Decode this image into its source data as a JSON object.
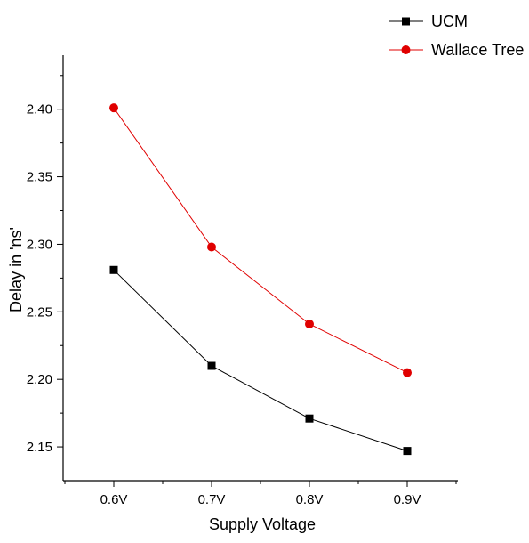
{
  "chart_data": {
    "type": "line",
    "title": "",
    "xlabel": "Supply Voltage",
    "ylabel": "Delay in 'ns'",
    "categories": [
      "0.6V",
      "0.7V",
      "0.8V",
      "0.9V"
    ],
    "ylim": [
      2.125,
      2.44
    ],
    "yticks": [
      "2.15",
      "2.20",
      "2.25",
      "2.30",
      "2.35",
      "2.40"
    ],
    "legend_position": "top-right, outside plot",
    "grid": false,
    "series": [
      {
        "name": "UCM",
        "values": [
          2.281,
          2.21,
          2.171,
          2.147
        ],
        "color": "#000000",
        "marker": "square"
      },
      {
        "name": "Wallace Tree",
        "values": [
          2.401,
          2.298,
          2.241,
          2.205
        ],
        "color": "#e00000",
        "marker": "circle"
      }
    ]
  }
}
